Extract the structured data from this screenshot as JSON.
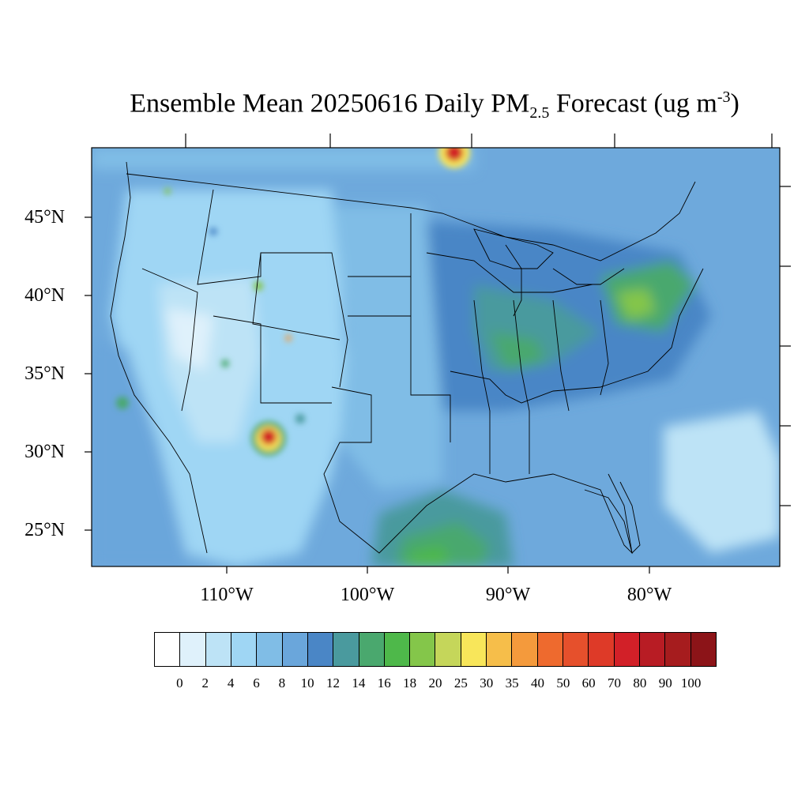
{
  "title": {
    "prefix": "Ensemble Mean 20250616 Daily PM",
    "subscript": "2.5",
    "middle": " Forecast (ug m",
    "superscript": "-3",
    "suffix": ")"
  },
  "map": {
    "lat_labels": [
      "45°N",
      "40°N",
      "35°N",
      "30°N",
      "25°N"
    ],
    "lon_labels": [
      "110°W",
      "100°W",
      "90°W",
      "80°W"
    ],
    "background_color": "#6ea9dc"
  },
  "colorbar": {
    "levels": [
      "0",
      "2",
      "4",
      "6",
      "8",
      "10",
      "12",
      "14",
      "16",
      "18",
      "20",
      "25",
      "30",
      "35",
      "40",
      "50",
      "60",
      "70",
      "80",
      "90",
      "100"
    ],
    "colors": [
      "#ffffff",
      "#dff1fb",
      "#bde3f6",
      "#9fd6f4",
      "#80bde6",
      "#6aa6db",
      "#4a86c6",
      "#4a9a9e",
      "#4aa86e",
      "#4eb84a",
      "#84c64a",
      "#c5d65a",
      "#f8e65a",
      "#f6be4a",
      "#f49a3c",
      "#ee6a2e",
      "#e6502c",
      "#de3a28",
      "#d22028",
      "#b81c24",
      "#a61c1e",
      "#8c1418"
    ]
  }
}
